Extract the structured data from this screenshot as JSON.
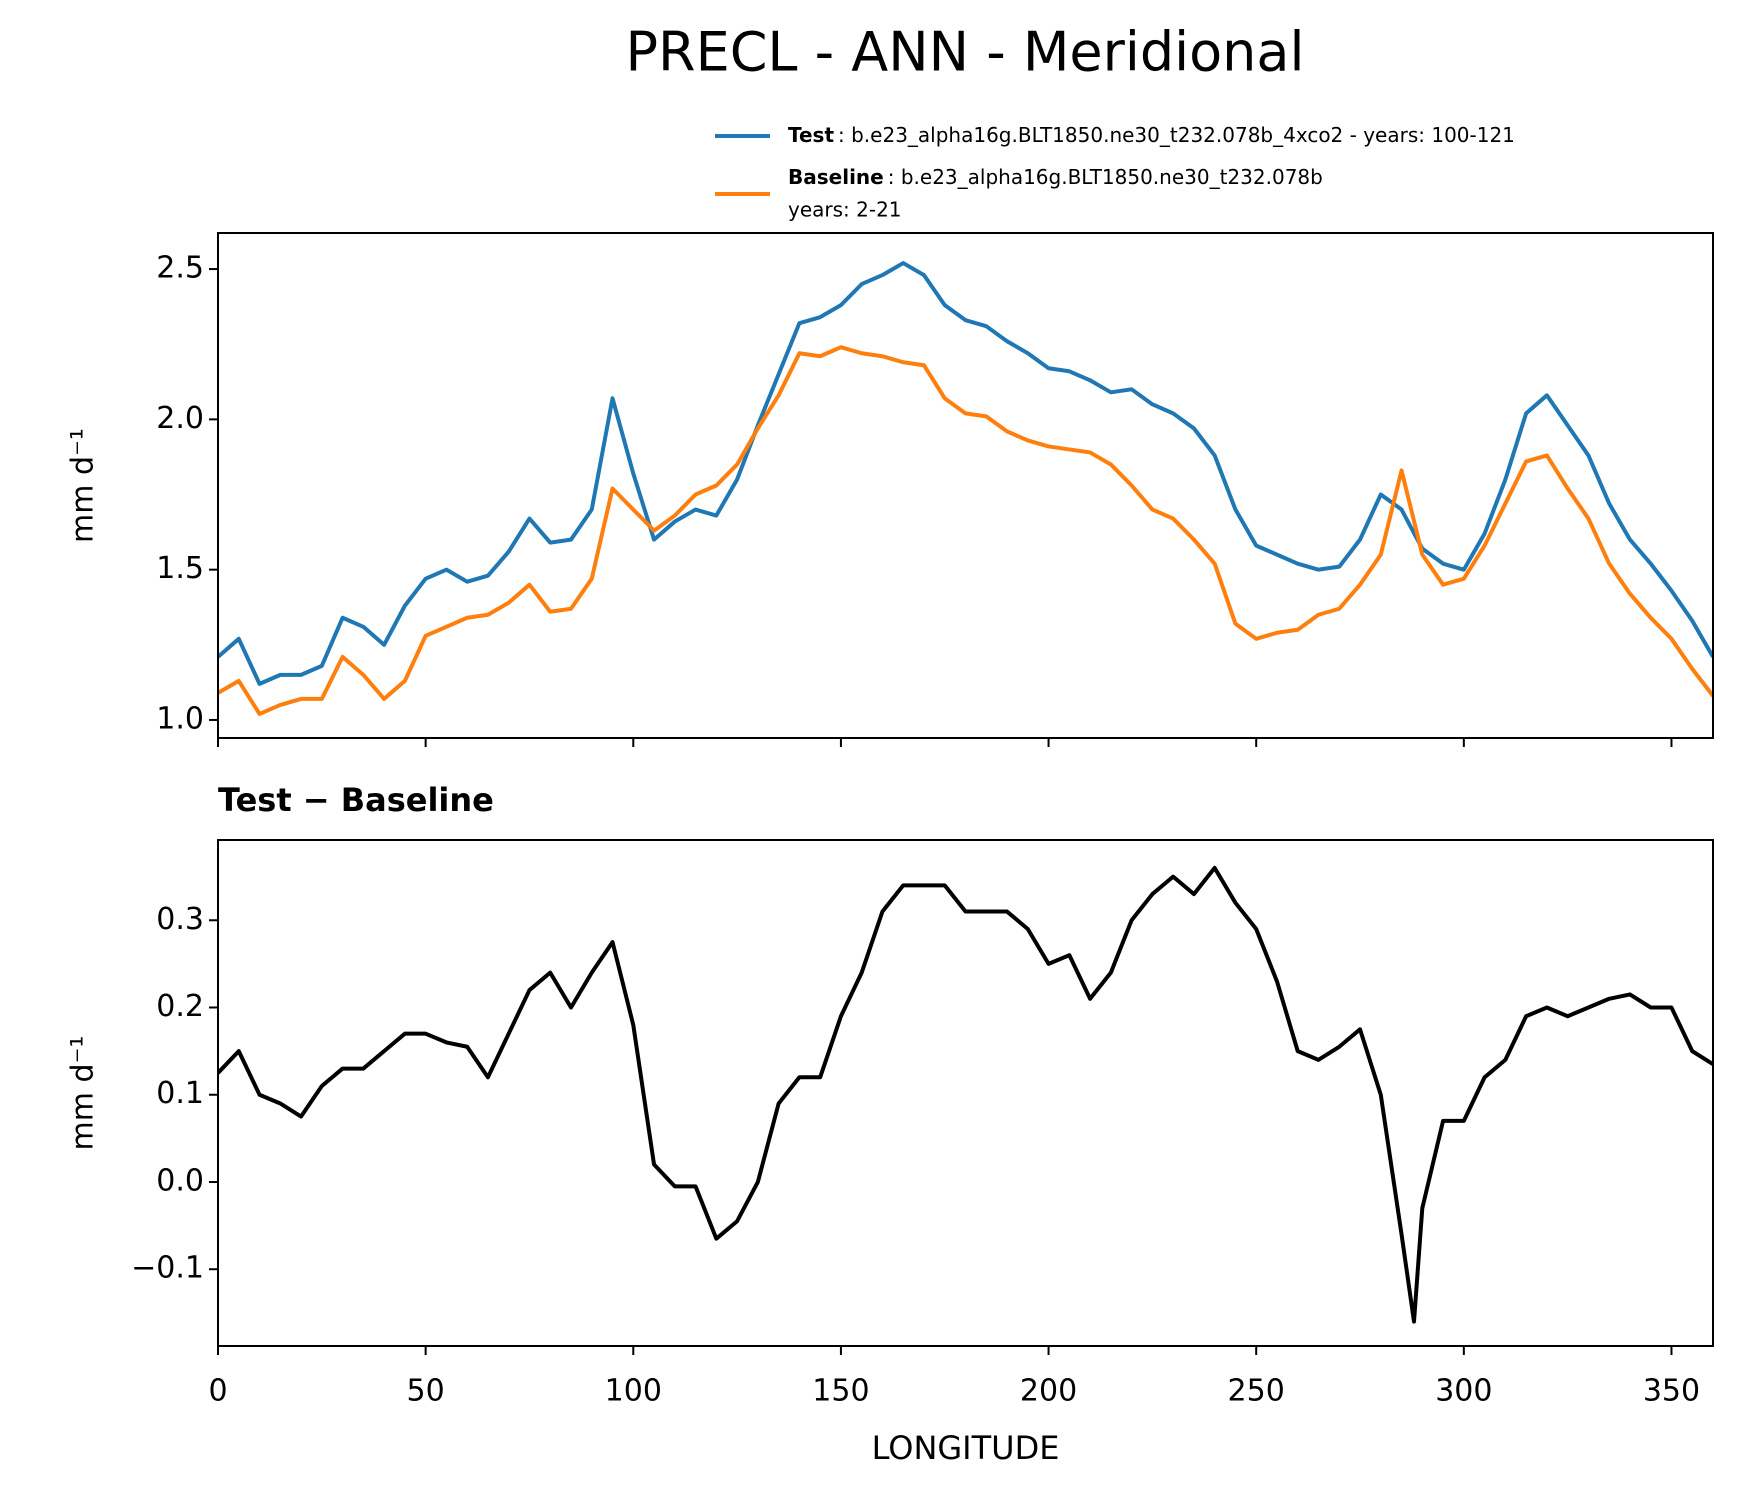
{
  "chart_data": [
    {
      "type": "line",
      "title": "PRECL - ANN - Meridional",
      "ylabel": "mm d⁻¹",
      "x": [
        0,
        5,
        10,
        15,
        20,
        25,
        30,
        35,
        40,
        45,
        50,
        55,
        60,
        65,
        70,
        75,
        80,
        85,
        90,
        95,
        100,
        105,
        110,
        115,
        120,
        125,
        130,
        135,
        140,
        145,
        150,
        155,
        160,
        165,
        170,
        175,
        180,
        185,
        190,
        195,
        200,
        205,
        210,
        215,
        220,
        225,
        230,
        235,
        240,
        245,
        250,
        255,
        260,
        265,
        270,
        275,
        280,
        285,
        290,
        295,
        300,
        305,
        310,
        315,
        320,
        325,
        330,
        335,
        340,
        345,
        350,
        355,
        360
      ],
      "series": [
        {
          "name": "Test",
          "description": [
            ": b.e23_alpha16g.BLT1850.ne30_t232.078b_4xco2 - years: 100-121"
          ],
          "color": "#1f77b4",
          "values": [
            1.21,
            1.27,
            1.12,
            1.15,
            1.15,
            1.18,
            1.34,
            1.31,
            1.25,
            1.38,
            1.47,
            1.5,
            1.46,
            1.48,
            1.56,
            1.67,
            1.59,
            1.6,
            1.7,
            2.07,
            1.82,
            1.6,
            1.66,
            1.7,
            1.68,
            1.8,
            1.98,
            2.15,
            2.32,
            2.34,
            2.38,
            2.45,
            2.48,
            2.52,
            2.48,
            2.38,
            2.33,
            2.31,
            2.26,
            2.22,
            2.17,
            2.16,
            2.13,
            2.09,
            2.1,
            2.05,
            2.02,
            1.97,
            1.88,
            1.7,
            1.58,
            1.55,
            1.52,
            1.5,
            1.51,
            1.6,
            1.75,
            1.7,
            1.57,
            1.52,
            1.5,
            1.62,
            1.8,
            2.02,
            2.08,
            1.98,
            1.88,
            1.72,
            1.6,
            1.52,
            1.43,
            1.33,
            1.21
          ]
        },
        {
          "name": "Baseline",
          "description": [
            ": b.e23_alpha16g.BLT1850.ne30_t232.078b",
            "years: 2-21"
          ],
          "color": "#ff7f0e",
          "values": [
            1.09,
            1.13,
            1.02,
            1.05,
            1.07,
            1.07,
            1.21,
            1.15,
            1.07,
            1.13,
            1.28,
            1.31,
            1.34,
            1.35,
            1.39,
            1.45,
            1.36,
            1.37,
            1.47,
            1.77,
            1.7,
            1.63,
            1.68,
            1.75,
            1.78,
            1.85,
            1.97,
            2.08,
            2.22,
            2.21,
            2.24,
            2.22,
            2.21,
            2.19,
            2.18,
            2.07,
            2.02,
            2.01,
            1.96,
            1.93,
            1.91,
            1.9,
            1.89,
            1.85,
            1.78,
            1.7,
            1.67,
            1.6,
            1.52,
            1.32,
            1.27,
            1.29,
            1.3,
            1.35,
            1.37,
            1.45,
            1.55,
            1.83,
            1.55,
            1.45,
            1.47,
            1.58,
            1.72,
            1.86,
            1.88,
            1.77,
            1.67,
            1.52,
            1.42,
            1.34,
            1.27,
            1.17,
            1.08
          ]
        }
      ],
      "xlim": [
        0,
        360
      ],
      "xticks": [
        0,
        50,
        100,
        150,
        200,
        250,
        300,
        350
      ],
      "ylim": [
        0.94,
        2.62
      ],
      "yticks": [
        {
          "value": 1.0,
          "label": "1.0"
        },
        1.5,
        {
          "value": 2.0,
          "label": "2.0"
        },
        2.5
      ]
    },
    {
      "type": "line",
      "subtitle": "Test − Baseline",
      "ylabel": "mm d⁻¹",
      "xlabel": "LONGITUDE",
      "x": [
        0,
        5,
        10,
        15,
        20,
        25,
        30,
        35,
        40,
        45,
        50,
        55,
        60,
        65,
        70,
        75,
        80,
        85,
        90,
        95,
        100,
        105,
        110,
        115,
        120,
        125,
        130,
        135,
        140,
        145,
        150,
        155,
        160,
        165,
        170,
        175,
        180,
        185,
        190,
        195,
        200,
        205,
        210,
        215,
        220,
        225,
        230,
        235,
        240,
        245,
        250,
        255,
        260,
        265,
        270,
        275,
        280,
        285,
        288,
        290,
        295,
        300,
        305,
        310,
        315,
        320,
        325,
        330,
        335,
        340,
        345,
        350,
        355,
        360
      ],
      "series": [
        {
          "color": "#000000",
          "values": [
            0.125,
            0.15,
            0.1,
            0.09,
            0.075,
            0.11,
            0.13,
            0.13,
            0.15,
            0.17,
            0.17,
            0.16,
            0.155,
            0.12,
            0.17,
            0.22,
            0.24,
            0.2,
            0.24,
            0.275,
            0.18,
            0.02,
            -0.005,
            -0.005,
            -0.065,
            -0.045,
            0.0,
            0.09,
            0.12,
            0.12,
            0.19,
            0.24,
            0.31,
            0.34,
            0.34,
            0.34,
            0.31,
            0.31,
            0.31,
            0.29,
            0.25,
            0.26,
            0.21,
            0.24,
            0.3,
            0.33,
            0.35,
            0.33,
            0.36,
            0.32,
            0.29,
            0.23,
            0.15,
            0.14,
            0.155,
            0.175,
            0.1,
            -0.06,
            -0.16,
            -0.03,
            0.07,
            0.07,
            0.12,
            0.14,
            0.19,
            0.2,
            0.19,
            0.2,
            0.21,
            0.215,
            0.2,
            0.2,
            0.15,
            0.135
          ]
        }
      ],
      "xlim": [
        0,
        360
      ],
      "xticks": [
        0,
        50,
        100,
        150,
        200,
        250,
        300,
        350
      ],
      "ylim": [
        -0.188,
        0.392
      ],
      "yticks": [
        {
          "value": -0.1,
          "label": "−0.1"
        },
        {
          "value": 0.0,
          "label": "0.0"
        },
        0.1,
        0.2,
        0.3
      ]
    }
  ]
}
